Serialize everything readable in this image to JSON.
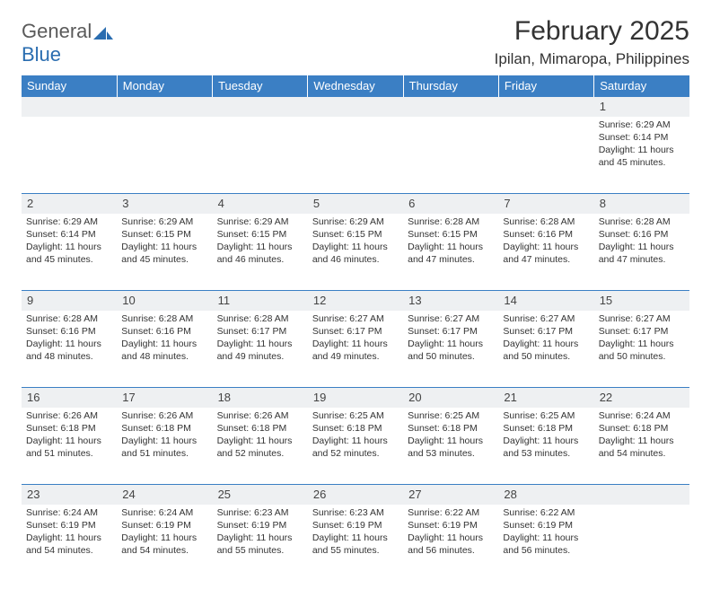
{
  "brand": {
    "text1": "General",
    "text2": "Blue"
  },
  "title": "February 2025",
  "location": "Ipilan, Mimaropa, Philippines",
  "weekdays": [
    "Sunday",
    "Monday",
    "Tuesday",
    "Wednesday",
    "Thursday",
    "Friday",
    "Saturday"
  ],
  "colors": {
    "header_bg": "#3b7fc4",
    "header_fg": "#ffffff",
    "daynum_bg": "#eef0f2",
    "rule": "#3b7fc4",
    "brand_gray": "#5a5a5a",
    "brand_blue": "#2a6db0"
  },
  "weeks": [
    [
      null,
      null,
      null,
      null,
      null,
      null,
      {
        "n": "1",
        "sr": "6:29 AM",
        "ss": "6:14 PM",
        "dl": "11 hours and 45 minutes."
      }
    ],
    [
      {
        "n": "2",
        "sr": "6:29 AM",
        "ss": "6:14 PM",
        "dl": "11 hours and 45 minutes."
      },
      {
        "n": "3",
        "sr": "6:29 AM",
        "ss": "6:15 PM",
        "dl": "11 hours and 45 minutes."
      },
      {
        "n": "4",
        "sr": "6:29 AM",
        "ss": "6:15 PM",
        "dl": "11 hours and 46 minutes."
      },
      {
        "n": "5",
        "sr": "6:29 AM",
        "ss": "6:15 PM",
        "dl": "11 hours and 46 minutes."
      },
      {
        "n": "6",
        "sr": "6:28 AM",
        "ss": "6:15 PM",
        "dl": "11 hours and 47 minutes."
      },
      {
        "n": "7",
        "sr": "6:28 AM",
        "ss": "6:16 PM",
        "dl": "11 hours and 47 minutes."
      },
      {
        "n": "8",
        "sr": "6:28 AM",
        "ss": "6:16 PM",
        "dl": "11 hours and 47 minutes."
      }
    ],
    [
      {
        "n": "9",
        "sr": "6:28 AM",
        "ss": "6:16 PM",
        "dl": "11 hours and 48 minutes."
      },
      {
        "n": "10",
        "sr": "6:28 AM",
        "ss": "6:16 PM",
        "dl": "11 hours and 48 minutes."
      },
      {
        "n": "11",
        "sr": "6:28 AM",
        "ss": "6:17 PM",
        "dl": "11 hours and 49 minutes."
      },
      {
        "n": "12",
        "sr": "6:27 AM",
        "ss": "6:17 PM",
        "dl": "11 hours and 49 minutes."
      },
      {
        "n": "13",
        "sr": "6:27 AM",
        "ss": "6:17 PM",
        "dl": "11 hours and 50 minutes."
      },
      {
        "n": "14",
        "sr": "6:27 AM",
        "ss": "6:17 PM",
        "dl": "11 hours and 50 minutes."
      },
      {
        "n": "15",
        "sr": "6:27 AM",
        "ss": "6:17 PM",
        "dl": "11 hours and 50 minutes."
      }
    ],
    [
      {
        "n": "16",
        "sr": "6:26 AM",
        "ss": "6:18 PM",
        "dl": "11 hours and 51 minutes."
      },
      {
        "n": "17",
        "sr": "6:26 AM",
        "ss": "6:18 PM",
        "dl": "11 hours and 51 minutes."
      },
      {
        "n": "18",
        "sr": "6:26 AM",
        "ss": "6:18 PM",
        "dl": "11 hours and 52 minutes."
      },
      {
        "n": "19",
        "sr": "6:25 AM",
        "ss": "6:18 PM",
        "dl": "11 hours and 52 minutes."
      },
      {
        "n": "20",
        "sr": "6:25 AM",
        "ss": "6:18 PM",
        "dl": "11 hours and 53 minutes."
      },
      {
        "n": "21",
        "sr": "6:25 AM",
        "ss": "6:18 PM",
        "dl": "11 hours and 53 minutes."
      },
      {
        "n": "22",
        "sr": "6:24 AM",
        "ss": "6:18 PM",
        "dl": "11 hours and 54 minutes."
      }
    ],
    [
      {
        "n": "23",
        "sr": "6:24 AM",
        "ss": "6:19 PM",
        "dl": "11 hours and 54 minutes."
      },
      {
        "n": "24",
        "sr": "6:24 AM",
        "ss": "6:19 PM",
        "dl": "11 hours and 54 minutes."
      },
      {
        "n": "25",
        "sr": "6:23 AM",
        "ss": "6:19 PM",
        "dl": "11 hours and 55 minutes."
      },
      {
        "n": "26",
        "sr": "6:23 AM",
        "ss": "6:19 PM",
        "dl": "11 hours and 55 minutes."
      },
      {
        "n": "27",
        "sr": "6:22 AM",
        "ss": "6:19 PM",
        "dl": "11 hours and 56 minutes."
      },
      {
        "n": "28",
        "sr": "6:22 AM",
        "ss": "6:19 PM",
        "dl": "11 hours and 56 minutes."
      },
      null
    ]
  ],
  "labels": {
    "sunrise": "Sunrise:",
    "sunset": "Sunset:",
    "daylight": "Daylight:"
  }
}
